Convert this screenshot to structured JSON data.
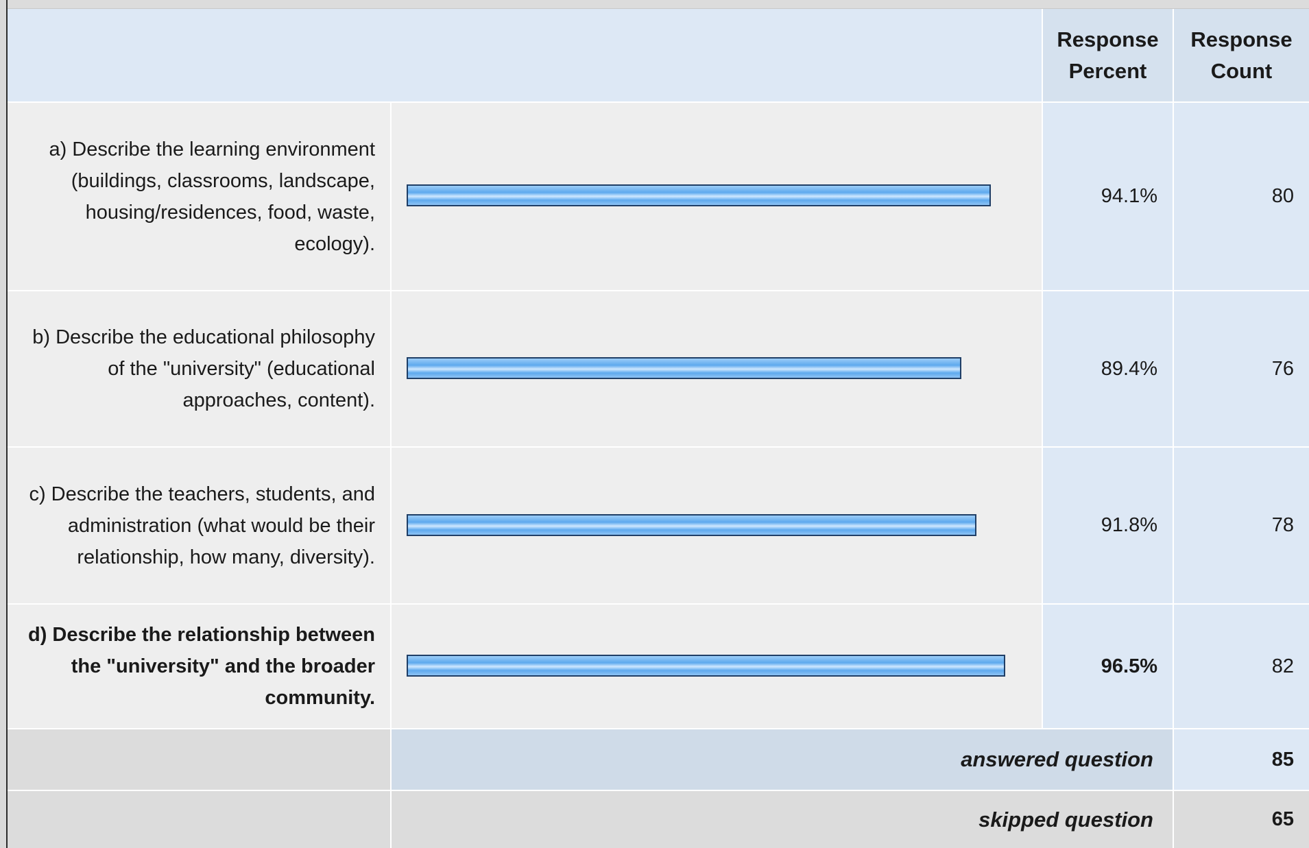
{
  "chart_data": {
    "type": "bar",
    "orientation": "horizontal",
    "columns": {
      "percent_header": "Response Percent",
      "count_header": "Response Count"
    },
    "rows": [
      {
        "label": "a) Describe the learning environment (buildings, classrooms, landscape, housing/residences, food, waste, ecology).",
        "percent": 94.1,
        "percent_text": "94.1%",
        "count": "80"
      },
      {
        "label": "b) Describe the educational philosophy of the \"university\" (educational approaches, content).",
        "percent": 89.4,
        "percent_text": "89.4%",
        "count": "76"
      },
      {
        "label": "c) Describe the teachers, students, and administration (what would be their relationship, how many, diversity).",
        "percent": 91.8,
        "percent_text": "91.8%",
        "count": "78"
      },
      {
        "label": "d) Describe the relationship between the \"university\" and the broader community.",
        "percent": 96.5,
        "percent_text": "96.5%",
        "count": "82",
        "bold": true
      }
    ],
    "xlim": [
      0,
      100
    ],
    "footer": {
      "answered_label": "answered question",
      "answered_value": "85",
      "skipped_label": "skipped question",
      "skipped_value": "65"
    },
    "colors": {
      "bar_fill": "#5ea9ee",
      "bar_border": "#1f3e66",
      "header_bg": "#d5e1ee",
      "row_bg": "#eeeeee"
    }
  }
}
